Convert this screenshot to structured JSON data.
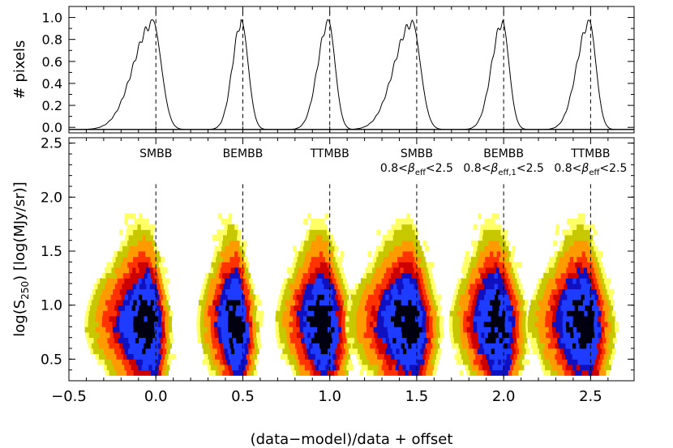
{
  "chart_data": [
    {
      "type": "line",
      "panel": "top",
      "ylabel": "# pixels",
      "xlim": [
        -0.5,
        2.75
      ],
      "ylim": [
        -0.05,
        1.1
      ],
      "yticks": [
        "0.0",
        "0.2",
        "0.4",
        "0.6",
        "0.8",
        "1.0"
      ],
      "ytick_values": [
        0.0,
        0.2,
        0.4,
        0.6,
        0.8,
        1.0
      ],
      "reference_lines_x": [
        0.0,
        0.5,
        1.0,
        1.5,
        2.0,
        2.5
      ],
      "series": [
        {
          "peak": -0.02,
          "width_left": 0.11,
          "width_right": 0.05
        },
        {
          "peak": 0.49,
          "width_left": 0.05,
          "width_right": 0.04
        },
        {
          "peak": 0.99,
          "width_left": 0.06,
          "width_right": 0.04
        },
        {
          "peak": 1.47,
          "width_left": 0.1,
          "width_right": 0.05
        },
        {
          "peak": 1.99,
          "width_left": 0.06,
          "width_right": 0.04
        },
        {
          "peak": 2.49,
          "width_left": 0.07,
          "width_right": 0.04
        }
      ]
    },
    {
      "type": "heatmap",
      "panel": "bottom",
      "xlabel": "(data−model)/data + offset",
      "ylabel_parts": [
        "log(S",
        "250",
        ")  [log(MJy/sr)]"
      ],
      "xlim": [
        -0.5,
        2.75
      ],
      "ylim": [
        0.3,
        2.55
      ],
      "xticks": [
        "−0.5",
        "0.0",
        "0.5",
        "1.0",
        "1.5",
        "2.0",
        "2.5"
      ],
      "xtick_values": [
        -0.5,
        0.0,
        0.5,
        1.0,
        1.5,
        2.0,
        2.5
      ],
      "yticks": [
        "0.5",
        "1.0",
        "1.5",
        "2.0",
        "2.5"
      ],
      "ytick_values": [
        0.5,
        1.0,
        1.5,
        2.0,
        2.5
      ],
      "color_scale": [
        "#ffff66",
        "#c8c800",
        "#ff9a00",
        "#ff3300",
        "#cc0000",
        "#1010c0",
        "#1e3cff",
        "#000010"
      ],
      "clusters": [
        {
          "center": 0.0,
          "label": "SMBB",
          "sublabel_parts": []
        },
        {
          "center": 0.5,
          "label": "BEMBB",
          "sublabel_parts": []
        },
        {
          "center": 1.0,
          "label": "TTMBB",
          "sublabel_parts": []
        },
        {
          "center": 1.5,
          "label": "SMBB",
          "sublabel_parts": [
            "0.8<",
            "β",
            "eff",
            "<2.5"
          ]
        },
        {
          "center": 2.0,
          "label": "BEMBB",
          "sublabel_parts": [
            "0.8<",
            "β",
            "eff,1",
            "<2.5"
          ]
        },
        {
          "center": 2.5,
          "label": "TTMBB",
          "sublabel_parts": [
            "0.8<",
            "β",
            "eff",
            "<2.5"
          ]
        }
      ]
    }
  ]
}
